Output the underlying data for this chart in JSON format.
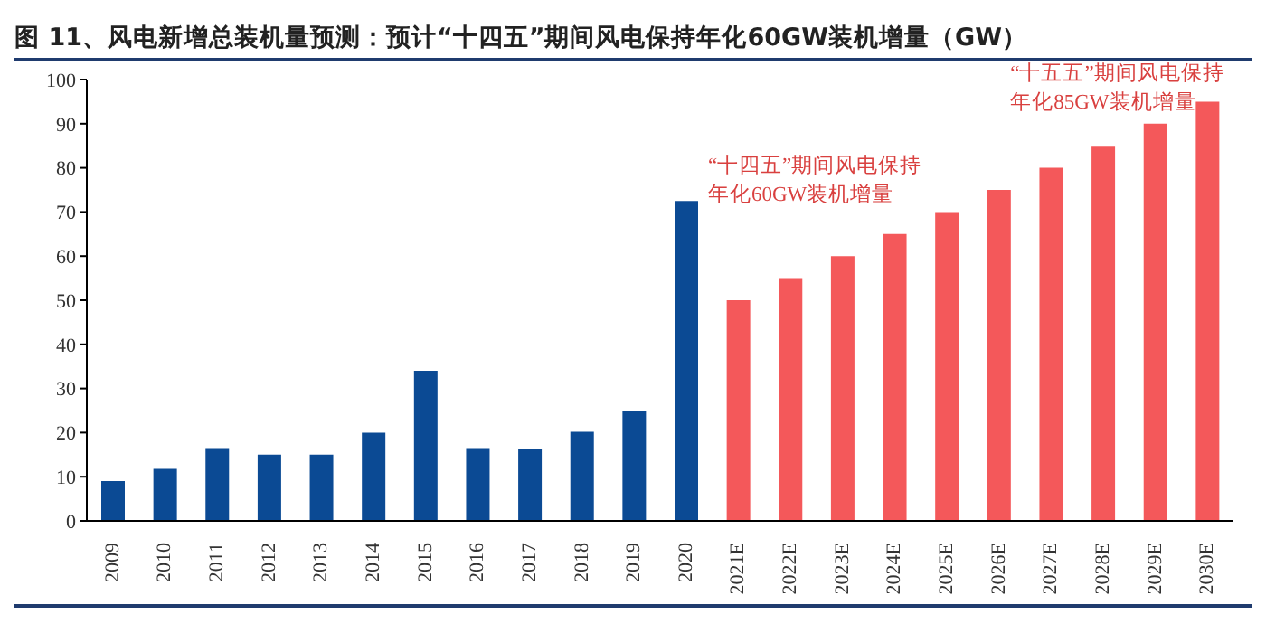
{
  "chart_data": {
    "type": "bar",
    "title": "图 11、风电新增总装机量预测：预计“十四五”期间风电保持年化60GW装机增量（GW）",
    "categories": [
      "2009",
      "2010",
      "2011",
      "2012",
      "2013",
      "2014",
      "2015",
      "2016",
      "2017",
      "2018",
      "2019",
      "2020",
      "2021E",
      "2022E",
      "2023E",
      "2024E",
      "2025E",
      "2026E",
      "2027E",
      "2028E",
      "2029E",
      "2030E"
    ],
    "values": [
      9,
      11.8,
      16.5,
      15,
      15,
      20,
      34,
      16.5,
      16.3,
      20.2,
      24.8,
      72.5,
      50,
      55,
      60,
      65,
      70,
      75,
      80,
      85,
      90,
      95
    ],
    "colors": [
      "#0b4a94",
      "#0b4a94",
      "#0b4a94",
      "#0b4a94",
      "#0b4a94",
      "#0b4a94",
      "#0b4a94",
      "#0b4a94",
      "#0b4a94",
      "#0b4a94",
      "#0b4a94",
      "#0b4a94",
      "#f4585a",
      "#f4585a",
      "#f4585a",
      "#f4585a",
      "#f4585a",
      "#f4585a",
      "#f4585a",
      "#f4585a",
      "#f4585a",
      "#f4585a"
    ],
    "annotations": [
      "“十四五”期间风电保持年化60GW装机增量",
      "“十五五”期间风电保持年化85GW装机增量"
    ],
    "ylim": [
      0,
      100
    ],
    "yticks": [
      0,
      10,
      20,
      30,
      40,
      50,
      60,
      70,
      80,
      90,
      100
    ],
    "grid": false,
    "legend": false
  }
}
